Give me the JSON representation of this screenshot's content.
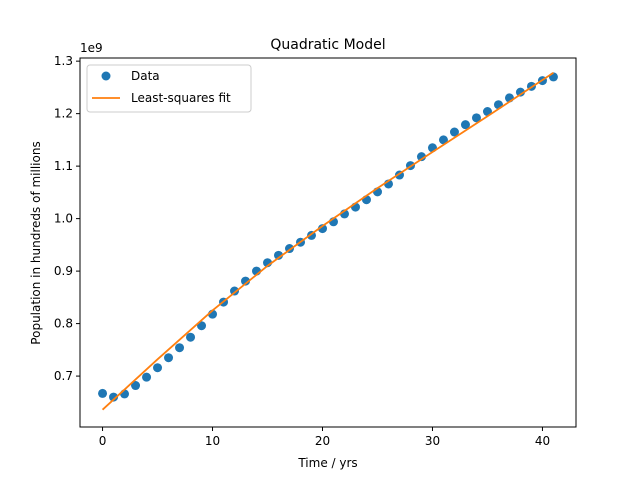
{
  "chart_data": {
    "type": "scatter",
    "title": "Quadratic Model",
    "xlabel": "Time / yrs",
    "ylabel": "Population in hundreds of millions",
    "y_offset_text": "1e9",
    "xlim": [
      -2.05,
      43.05
    ],
    "ylim": [
      0.603,
      1.306
    ],
    "x_ticks": [
      0,
      10,
      20,
      30,
      40
    ],
    "x_tick_labels": [
      "0",
      "10",
      "20",
      "30",
      "40"
    ],
    "y_ticks": [
      0.7,
      0.8,
      0.9,
      1.0,
      1.1,
      1.2,
      1.3
    ],
    "y_tick_labels": [
      "0.7",
      "0.8",
      "0.9",
      "1.0",
      "1.1",
      "1.2",
      "1.3"
    ],
    "grid": false,
    "legend_position": "upper left",
    "colors": {
      "data": "#1f77b4",
      "fit": "#ff7f0e"
    },
    "series": [
      {
        "name": "Data",
        "style": "markers",
        "x": [
          0,
          1,
          2,
          3,
          4,
          5,
          6,
          7,
          8,
          9,
          10,
          11,
          12,
          13,
          14,
          15,
          16,
          17,
          18,
          19,
          20,
          21,
          22,
          23,
          24,
          25,
          26,
          27,
          28,
          29,
          30,
          31,
          32,
          33,
          34,
          35,
          36,
          37,
          38,
          39,
          40,
          41
        ],
        "y": [
          0.667,
          0.66,
          0.666,
          0.682,
          0.698,
          0.716,
          0.735,
          0.754,
          0.774,
          0.796,
          0.818,
          0.841,
          0.862,
          0.881,
          0.9,
          0.916,
          0.93,
          0.943,
          0.955,
          0.968,
          0.981,
          0.994,
          1.009,
          1.022,
          1.036,
          1.051,
          1.066,
          1.083,
          1.101,
          1.118,
          1.135,
          1.15,
          1.165,
          1.179,
          1.192,
          1.204,
          1.217,
          1.23,
          1.241,
          1.252,
          1.263,
          1.27
        ]
      },
      {
        "name": "Least-squares fit",
        "style": "line",
        "x": [
          0,
          5,
          10,
          15,
          20,
          25,
          30,
          35,
          41
        ],
        "y": [
          0.636,
          0.732,
          0.825,
          0.91,
          0.986,
          1.058,
          1.127,
          1.195,
          1.278
        ]
      }
    ]
  }
}
